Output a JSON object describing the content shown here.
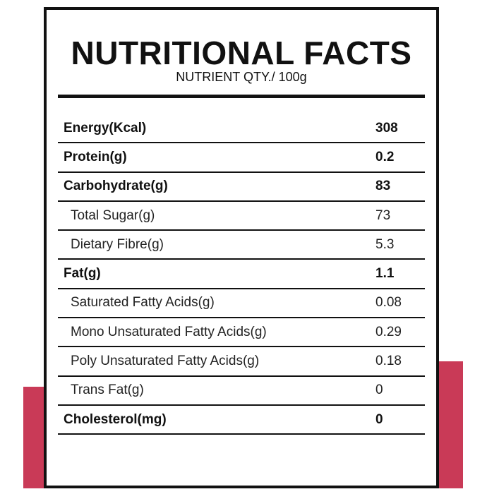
{
  "colors": {
    "accent": "#c93a57",
    "border": "#111111"
  },
  "title": "NUTRITIONAL FACTS",
  "subtitle": "NUTRIENT QTY./ 100g",
  "rows": [
    {
      "name": "Energy(Kcal)",
      "value": "308",
      "bold": true
    },
    {
      "name": "Protein(g)",
      "value": "0.2",
      "bold": true
    },
    {
      "name": "Carbohydrate(g)",
      "value": "83",
      "bold": true
    },
    {
      "name": "Total Sugar(g)",
      "value": "73",
      "bold": false
    },
    {
      "name": "Dietary Fibre(g)",
      "value": "5.3",
      "bold": false
    },
    {
      "name": "Fat(g)",
      "value": "1.1",
      "bold": true
    },
    {
      "name": "Saturated Fatty Acids(g)",
      "value": "0.08",
      "bold": false
    },
    {
      "name": "Mono Unsaturated Fatty Acids(g)",
      "value": "0.29",
      "bold": false
    },
    {
      "name": "Poly Unsaturated Fatty Acids(g)",
      "value": "0.18",
      "bold": false
    },
    {
      "name": "Trans Fat(g)",
      "value": "0",
      "bold": false
    },
    {
      "name": "Cholesterol(mg)",
      "value": "0",
      "bold": true
    }
  ]
}
